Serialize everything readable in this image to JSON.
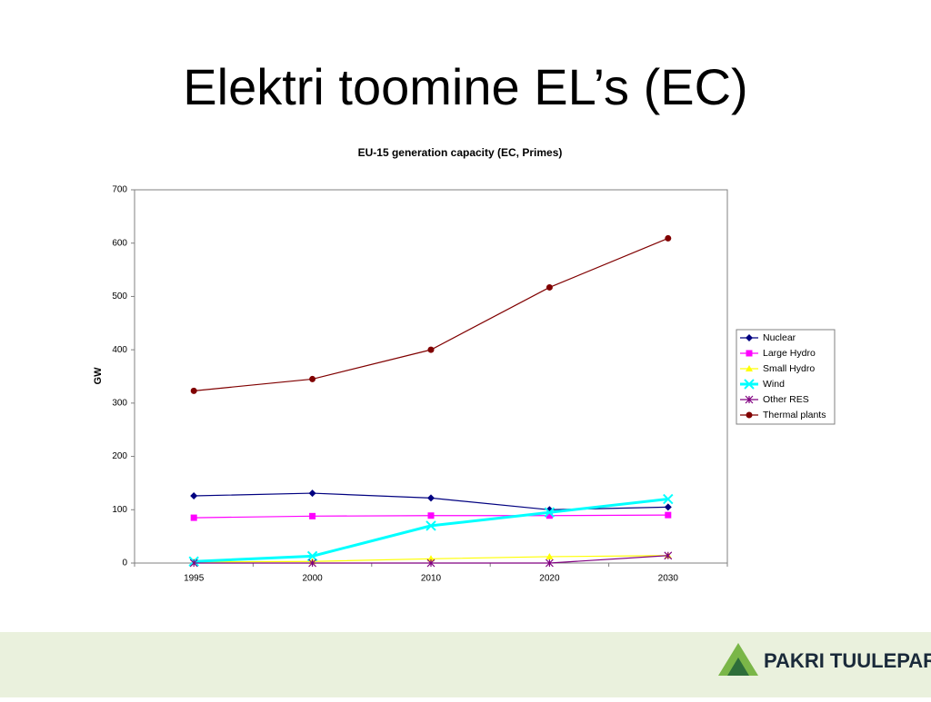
{
  "slide_title": "Elektri toomine EL’s (EC)",
  "chart_data": {
    "type": "line",
    "title": "EU-15 generation capacity (EC, Primes)",
    "y_label": "GW",
    "categories": [
      "1995",
      "2000",
      "2010",
      "2020",
      "2030"
    ],
    "series": [
      {
        "name": "Nuclear",
        "color": "#000080",
        "marker": "diamond",
        "values": [
          126,
          131,
          122,
          100,
          105
        ]
      },
      {
        "name": "Large Hydro",
        "color": "#ff00ff",
        "marker": "square",
        "values": [
          85,
          88,
          89,
          89,
          90
        ]
      },
      {
        "name": "Small Hydro",
        "color": "#ffff00",
        "marker": "triangle",
        "values": [
          2,
          3,
          8,
          12,
          14
        ]
      },
      {
        "name": "Wind",
        "color": "#00ffff",
        "marker": "x",
        "width": 3,
        "values": [
          3,
          13,
          70,
          95,
          120
        ]
      },
      {
        "name": "Other RES",
        "color": "#800080",
        "marker": "star",
        "values": [
          0,
          0,
          0,
          0,
          14
        ]
      },
      {
        "name": "Thermal plants",
        "color": "#800000",
        "marker": "circle",
        "values": [
          323,
          345,
          400,
          517,
          609
        ]
      }
    ],
    "ylim": [
      0,
      700
    ],
    "yticks": [
      0,
      100,
      200,
      300,
      400,
      500,
      600,
      700
    ],
    "grid": false,
    "legend": "right"
  },
  "footer": {
    "logo_text": "PAKRI TUULEPARK"
  }
}
